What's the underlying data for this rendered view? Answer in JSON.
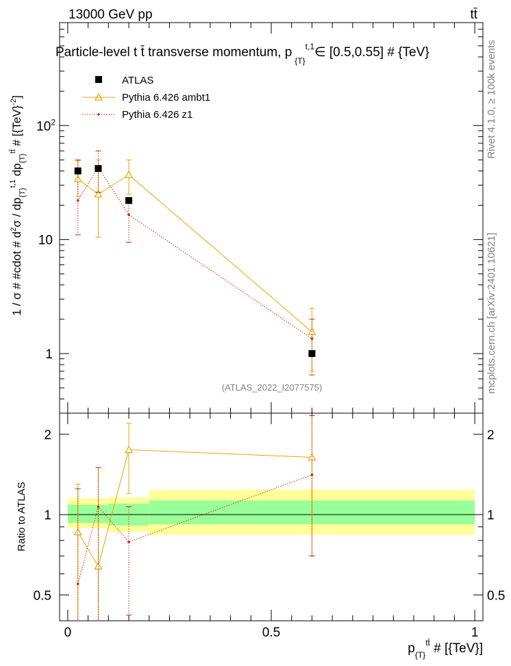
{
  "header": {
    "energy_label": "13000 GeV pp",
    "process_label": "tt̄"
  },
  "side_labels": {
    "rivet": "Rivet 4.1.0, ≥ 100k events",
    "source": "mcplots.cern.ch [arXiv:2401.10621]"
  },
  "watermark": "(ATLAS_2022_I2077575)",
  "colors": {
    "atlas": "#000000",
    "ambt1": "#e8a500",
    "z1": "#d62000",
    "band_inner": "#99ff99",
    "band_outer": "#ffff99"
  },
  "chart_data": [
    {
      "type": "scatter",
      "panel": "main",
      "title": "Particle-level t t̄ transverse momentum, p_{T}^{t,1} ∈ [0.5,0.55] # {TeV}",
      "ylabel": "1 / σ # #cdot # d²σ / dp_{T}^{t,1} dp_{T}^{tt̄} # [{TeV}⁻²]",
      "yscale": "log",
      "xlim": [
        -0.02,
        1.02
      ],
      "ylim": [
        0.3,
        800
      ],
      "ticks": [
        {
          "value": 1,
          "label": "1"
        },
        {
          "value": 10,
          "label": "10"
        },
        {
          "value": 100,
          "label": "10²"
        }
      ],
      "legend": [
        "ATLAS",
        "Pythia 6.426 ambt1",
        "Pythia 6.426 z1"
      ],
      "series": [
        {
          "name": "ATLAS",
          "style": "square",
          "x": [
            0.025,
            0.075,
            0.15,
            0.6
          ],
          "y": [
            40,
            42,
            22,
            1.0
          ]
        },
        {
          "name": "Pythia 6.426 ambt1",
          "style": "triangle-line",
          "x": [
            0.025,
            0.075,
            0.15,
            0.6
          ],
          "y": [
            34,
            25,
            37,
            1.55
          ],
          "err_low": [
            24,
            10.5,
            25,
            0.7
          ],
          "err_high": [
            49,
            50,
            50,
            2.5
          ]
        },
        {
          "name": "Pythia 6.426 z1",
          "style": "dot-dotted",
          "x": [
            0.025,
            0.075,
            0.15,
            0.6
          ],
          "y": [
            22,
            43,
            16.5,
            1.35
          ],
          "err_low": [
            11,
            26,
            9.5,
            0.65
          ],
          "err_high": [
            50,
            60,
            23,
            2.0
          ]
        }
      ]
    },
    {
      "type": "line",
      "panel": "ratio",
      "ylabel": "Ratio to ATLAS",
      "xlabel": "p_{T}^{tt̄} # [{TeV}]",
      "yscale": "log",
      "xlim": [
        -0.02,
        1.02
      ],
      "ylim": [
        0.4,
        2.4
      ],
      "ticks": [
        {
          "value": 0.5,
          "label": "0.5"
        },
        {
          "value": 1,
          "label": "1"
        },
        {
          "value": 2,
          "label": "2"
        }
      ],
      "x_ticks": [
        {
          "value": 0,
          "label": "0"
        },
        {
          "value": 0.5,
          "label": "0.5"
        },
        {
          "value": 1,
          "label": "1"
        }
      ],
      "bands": [
        {
          "x_low": 0.0,
          "x_high": 0.1,
          "inner_low": 0.93,
          "inner_high": 1.09,
          "outer_low": 0.89,
          "outer_high": 1.15
        },
        {
          "x_low": 0.1,
          "x_high": 0.2,
          "inner_low": 0.91,
          "inner_high": 1.1,
          "outer_low": 0.86,
          "outer_high": 1.16
        },
        {
          "x_low": 0.2,
          "x_high": 1.0,
          "inner_low": 0.92,
          "inner_high": 1.13,
          "outer_low": 0.84,
          "outer_high": 1.24
        }
      ],
      "series": [
        {
          "name": "Pythia 6.426 ambt1",
          "style": "triangle-line",
          "x": [
            0.025,
            0.075,
            0.15,
            0.6
          ],
          "y": [
            0.86,
            0.64,
            1.75,
            1.64
          ],
          "err_low": [
            0.4,
            0.4,
            1.2,
            0.7
          ],
          "err_high": [
            1.3,
            1.5,
            2.2,
            2.35
          ]
        },
        {
          "name": "Pythia 6.426 z1",
          "style": "dot-dotted",
          "x": [
            0.025,
            0.075,
            0.15,
            0.6
          ],
          "y": [
            0.55,
            1.07,
            0.79,
            1.41
          ],
          "err_low": [
            0.4,
            0.4,
            0.42,
            0.7
          ],
          "err_high": [
            1.25,
            1.5,
            1.07,
            2.35
          ]
        }
      ]
    }
  ]
}
